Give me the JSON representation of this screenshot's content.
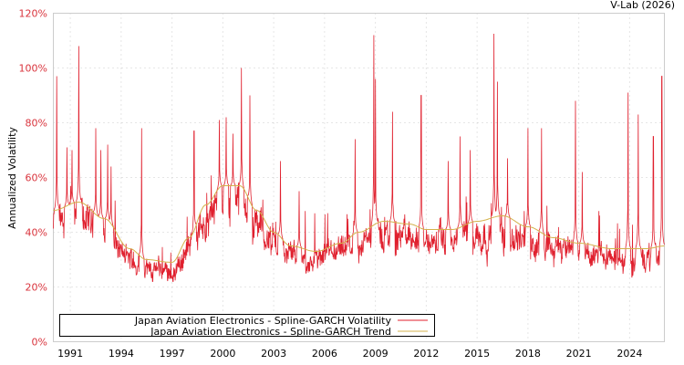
{
  "credit": "V-Lab (2026)",
  "chart_data": {
    "type": "line",
    "ylabel": "Annualized Volatility",
    "xlabel": "",
    "ylim": [
      0,
      120
    ],
    "xlim": [
      1990.0,
      2026.05
    ],
    "y_ticks": [
      "0%",
      "20%",
      "40%",
      "60%",
      "80%",
      "100%",
      "120%"
    ],
    "y_tick_values": [
      0,
      20,
      40,
      60,
      80,
      100,
      120
    ],
    "x_ticks": [
      "1991",
      "1994",
      "1997",
      "2000",
      "2003",
      "2006",
      "2009",
      "2012",
      "2015",
      "2018",
      "2021",
      "2024"
    ],
    "grid": true,
    "legend_placement": "bottom-left",
    "colors": {
      "volatility": "#e0202e",
      "trend": "#d4b24c",
      "axis_label": "#d9343d"
    },
    "series": [
      {
        "name": "Japan Aviation Electronics - Spline-GARCH Volatility",
        "note_values": "approximate spikes (year, %); baseline follows trend with noise",
        "spikes": [
          [
            1990.2,
            97
          ],
          [
            1990.8,
            71
          ],
          [
            1991.1,
            70
          ],
          [
            1991.5,
            108
          ],
          [
            1992.5,
            78
          ],
          [
            1992.8,
            70
          ],
          [
            1993.2,
            72
          ],
          [
            1993.4,
            64
          ],
          [
            1995.2,
            78
          ],
          [
            1998.3,
            77
          ],
          [
            1999.8,
            81
          ],
          [
            2000.2,
            82
          ],
          [
            2000.6,
            76
          ],
          [
            2001.1,
            100
          ],
          [
            2001.6,
            90
          ],
          [
            2003.4,
            66
          ],
          [
            2004.5,
            55
          ],
          [
            2007.8,
            74
          ],
          [
            2008.9,
            112
          ],
          [
            2009.0,
            96
          ],
          [
            2010.0,
            84
          ],
          [
            2011.7,
            90
          ],
          [
            2013.3,
            66
          ],
          [
            2014.0,
            75
          ],
          [
            2014.6,
            70
          ],
          [
            2016.0,
            112.5
          ],
          [
            2016.2,
            95
          ],
          [
            2016.8,
            67
          ],
          [
            2018.0,
            78
          ],
          [
            2018.8,
            78
          ],
          [
            2020.8,
            88
          ],
          [
            2021.2,
            62
          ],
          [
            2023.9,
            91
          ],
          [
            2024.5,
            83
          ],
          [
            2025.4,
            75
          ],
          [
            2025.9,
            97
          ]
        ]
      },
      {
        "name": "Japan Aviation Electronics - Spline-GARCH Trend",
        "points": [
          [
            1990,
            48
          ],
          [
            1991.5,
            51
          ],
          [
            1993,
            45
          ],
          [
            1994.5,
            34
          ],
          [
            1995.5,
            30
          ],
          [
            1997,
            29
          ],
          [
            1998,
            38
          ],
          [
            1999,
            50
          ],
          [
            2000,
            57
          ],
          [
            2001,
            57
          ],
          [
            2002,
            48
          ],
          [
            2003,
            40
          ],
          [
            2004,
            35
          ],
          [
            2005.5,
            33
          ],
          [
            2007,
            36
          ],
          [
            2008,
            40
          ],
          [
            2009.5,
            44
          ],
          [
            2011,
            43
          ],
          [
            2012,
            41
          ],
          [
            2013.5,
            41
          ],
          [
            2015,
            44
          ],
          [
            2016.5,
            46
          ],
          [
            2018,
            42
          ],
          [
            2019.5,
            38
          ],
          [
            2021,
            36
          ],
          [
            2023,
            34
          ],
          [
            2025,
            34
          ],
          [
            2026.05,
            35
          ]
        ]
      }
    ]
  }
}
